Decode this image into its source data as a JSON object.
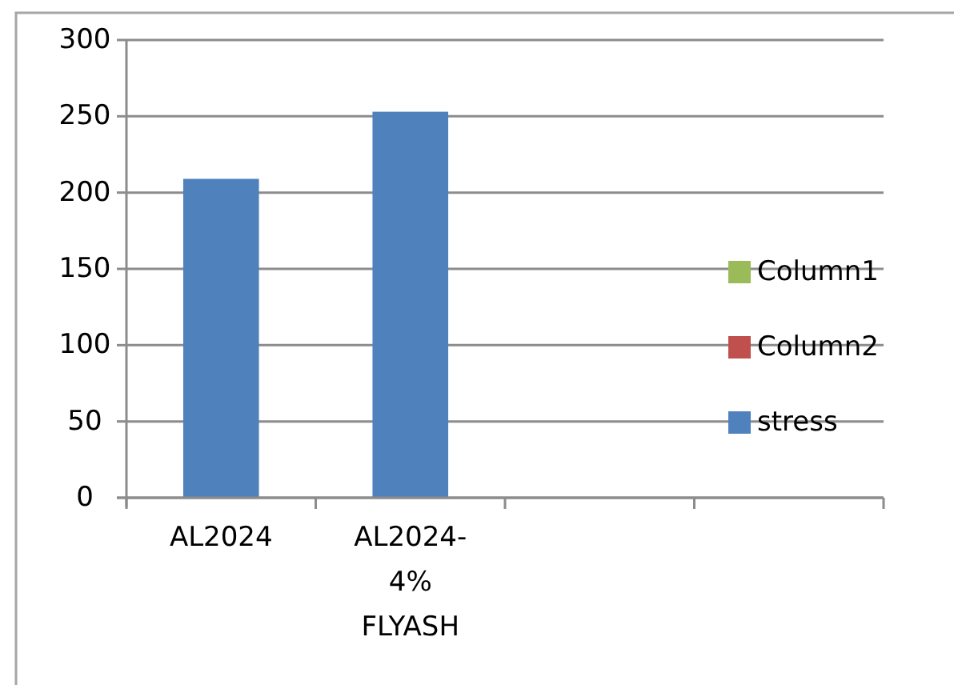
{
  "chart_data": {
    "type": "bar",
    "categories": [
      "AL2024",
      "AL2024-4% FLYASH",
      null,
      null
    ],
    "series": [
      {
        "name": "Column1",
        "color": "#9bbb59",
        "values": [
          null,
          null,
          null,
          null
        ]
      },
      {
        "name": "Column2",
        "color": "#c0504d",
        "values": [
          null,
          null,
          null,
          null
        ]
      },
      {
        "name": "stress",
        "color": "#4f81bd",
        "values": [
          209,
          253,
          null,
          null
        ]
      }
    ],
    "ylim": [
      0,
      300
    ],
    "yticks": [
      0,
      50,
      100,
      150,
      200,
      250,
      300
    ],
    "grid": "y",
    "legend": "right"
  }
}
